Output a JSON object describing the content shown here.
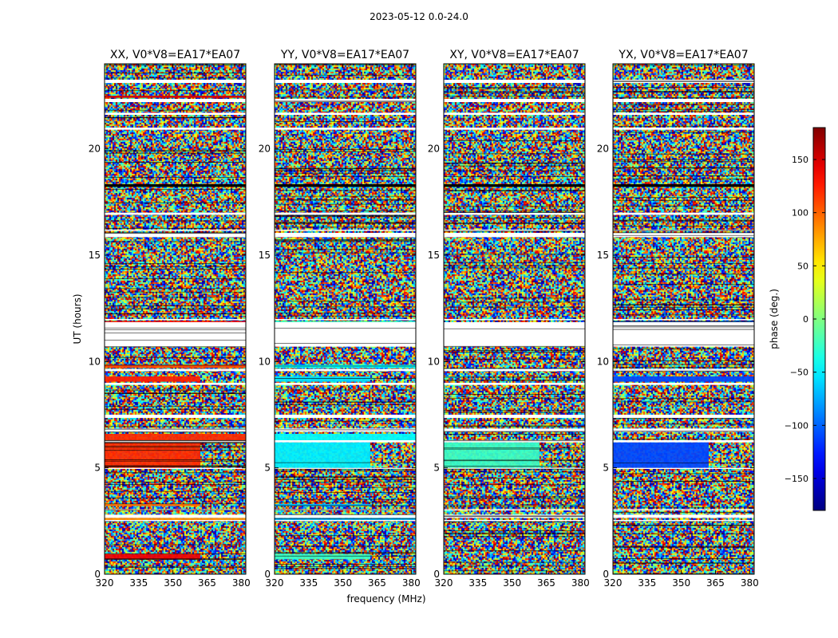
{
  "figure": {
    "suptitle": "2023-05-12 0.0-24.0",
    "xlabel": "frequency (MHz)",
    "ylabel": "UT (hours)"
  },
  "chart_data": {
    "type": "heatmap",
    "x_range": [
      320,
      382
    ],
    "y_range": [
      0,
      24
    ],
    "x_ticks": [
      "320",
      "335",
      "350",
      "365",
      "380"
    ],
    "x_tick_values": [
      320,
      335,
      350,
      365,
      380
    ],
    "y_ticks": [
      "0",
      "5",
      "10",
      "15",
      "20"
    ],
    "y_tick_values": [
      0,
      5,
      10,
      15,
      20
    ],
    "colormap": "jet",
    "colorbar": {
      "label": "phase (deg.)",
      "range": [
        -180,
        180
      ],
      "ticks": [
        "150",
        "100",
        "50",
        "0",
        "−50",
        "−100",
        "−150"
      ],
      "tick_values": [
        150,
        100,
        50,
        0,
        -50,
        -100,
        -150
      ]
    },
    "blank_bands_ut": [
      [
        23.1,
        23.25
      ],
      [
        22.2,
        22.35
      ],
      [
        21.6,
        21.7
      ],
      [
        20.9,
        21.0
      ],
      [
        16.9,
        17.0
      ],
      [
        16.15,
        16.2
      ],
      [
        15.85,
        16.05
      ],
      [
        11.95,
        12.0
      ],
      [
        10.7,
        11.85
      ],
      [
        9.55,
        9.65
      ],
      [
        8.9,
        9.0
      ],
      [
        7.35,
        7.5
      ],
      [
        6.7,
        6.85
      ],
      [
        6.2,
        6.3
      ],
      [
        4.95,
        5.0
      ],
      [
        3.0,
        3.05
      ],
      [
        2.65,
        2.8
      ],
      [
        2.5,
        2.55
      ]
    ],
    "panels": [
      {
        "title": "XX, V0*V8=EA17*EA07",
        "stable_phase_deg": [
          {
            "ut": [
              5.0,
              6.2
            ],
            "freq": [
              320,
              362
            ],
            "phase": 120
          },
          {
            "ut": [
              6.3,
              6.6
            ],
            "freq": [
              320,
              382
            ],
            "phase": 120
          },
          {
            "ut": [
              9.05,
              9.3
            ],
            "freq": [
              320,
              362
            ],
            "phase": 125
          },
          {
            "ut": [
              9.7,
              9.85
            ],
            "freq": [
              320,
              382
            ],
            "phase": 110
          },
          {
            "ut": [
              3.2,
              3.3
            ],
            "freq": [
              320,
              362
            ],
            "phase": 95
          },
          {
            "ut": [
              2.55,
              2.65
            ],
            "freq": [
              320,
              382
            ],
            "phase": 85
          },
          {
            "ut": [
              0.7,
              0.95
            ],
            "freq": [
              320,
              362
            ],
            "phase": 140
          },
          {
            "ut": [
              11.75,
              11.9
            ],
            "freq": [
              320,
              382
            ],
            "phase": 135
          },
          {
            "ut": [
              22.4,
              22.5
            ],
            "freq": [
              320,
              382
            ],
            "phase": 150
          }
        ]
      },
      {
        "title": "YY, V0*V8=EA17*EA07",
        "stable_phase_deg": [
          {
            "ut": [
              5.0,
              6.2
            ],
            "freq": [
              320,
              362
            ],
            "phase": -50
          },
          {
            "ut": [
              6.3,
              6.6
            ],
            "freq": [
              320,
              382
            ],
            "phase": -45
          },
          {
            "ut": [
              9.05,
              9.3
            ],
            "freq": [
              320,
              362
            ],
            "phase": -55
          },
          {
            "ut": [
              9.7,
              9.85
            ],
            "freq": [
              320,
              382
            ],
            "phase": -45
          },
          {
            "ut": [
              3.2,
              3.3
            ],
            "freq": [
              320,
              362
            ],
            "phase": -70
          },
          {
            "ut": [
              2.55,
              2.65
            ],
            "freq": [
              320,
              382
            ],
            "phase": -70
          },
          {
            "ut": [
              0.7,
              0.95
            ],
            "freq": [
              320,
              362
            ],
            "phase": -25
          },
          {
            "ut": [
              11.75,
              11.9
            ],
            "freq": [
              320,
              382
            ],
            "phase": -25
          }
        ]
      },
      {
        "title": "XY, V0*V8=EA17*EA07",
        "stable_phase_deg": [
          {
            "ut": [
              5.0,
              6.2
            ],
            "freq": [
              320,
              362
            ],
            "phase": -25
          }
        ]
      },
      {
        "title": "YX, V0*V8=EA17*EA07",
        "stable_phase_deg": [
          {
            "ut": [
              5.0,
              6.2
            ],
            "freq": [
              320,
              362
            ],
            "phase": -110
          },
          {
            "ut": [
              9.05,
              9.3
            ],
            "freq": [
              320,
              382
            ],
            "phase": -110
          },
          {
            "ut": [
              11.75,
              11.9
            ],
            "freq": [
              320,
              382
            ],
            "phase": -100
          }
        ]
      }
    ]
  }
}
